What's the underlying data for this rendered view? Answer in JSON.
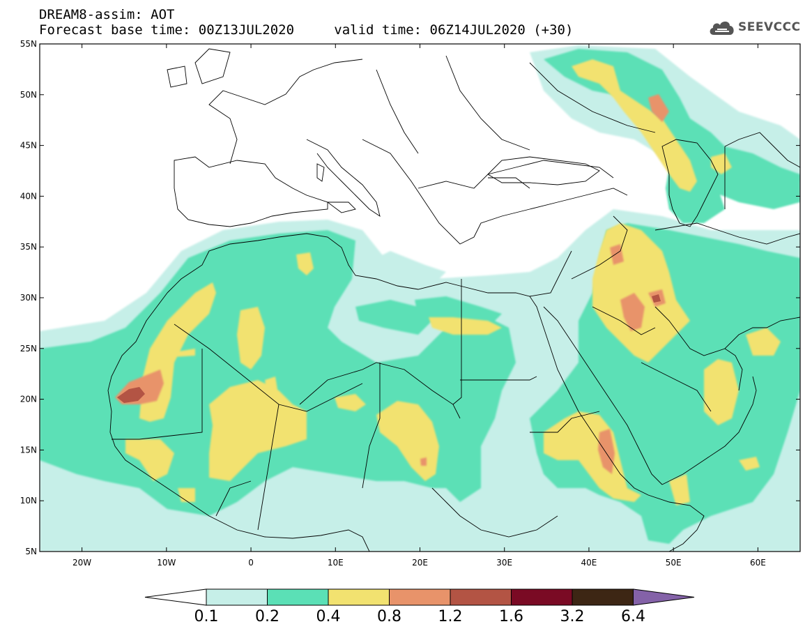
{
  "title": {
    "line1": "DREAM8-assim: AOT",
    "base_time": "Forecast base time: 00Z13JUL2020",
    "valid_time": "valid time: 06Z14JUL2020 (+30)"
  },
  "logo": {
    "text": "SEEVCCC",
    "icon": "cloud-icon",
    "color": "#555555"
  },
  "map": {
    "projection": "equirectangular",
    "lon_range": [
      -25,
      65
    ],
    "lat_range": [
      5,
      55
    ],
    "lat_ticks": [
      {
        "value": 55,
        "label": "55N"
      },
      {
        "value": 50,
        "label": "50N"
      },
      {
        "value": 45,
        "label": "45N"
      },
      {
        "value": 40,
        "label": "40N"
      },
      {
        "value": 35,
        "label": "35N"
      },
      {
        "value": 30,
        "label": "30N"
      },
      {
        "value": 25,
        "label": "25N"
      },
      {
        "value": 20,
        "label": "20N"
      },
      {
        "value": 15,
        "label": "15N"
      },
      {
        "value": 10,
        "label": "10N"
      },
      {
        "value": 5,
        "label": "5N"
      }
    ],
    "lon_ticks": [
      {
        "value": -20,
        "label": "20W"
      },
      {
        "value": -10,
        "label": "10W"
      },
      {
        "value": 0,
        "label": "0"
      },
      {
        "value": 10,
        "label": "10E"
      },
      {
        "value": 20,
        "label": "20E"
      },
      {
        "value": 30,
        "label": "30E"
      },
      {
        "value": 40,
        "label": "40E"
      },
      {
        "value": 50,
        "label": "50E"
      },
      {
        "value": 60,
        "label": "60E"
      }
    ]
  },
  "colorbar": {
    "levels": [
      "0.1",
      "0.2",
      "0.4",
      "0.8",
      "1.2",
      "1.6",
      "3.2",
      "6.4"
    ],
    "colors": [
      "#ffffff",
      "#c6efe8",
      "#5be0b6",
      "#f2e270",
      "#e8936a",
      "#b35444",
      "#7a0a24",
      "#3d2614",
      "#8462a8"
    ]
  }
}
